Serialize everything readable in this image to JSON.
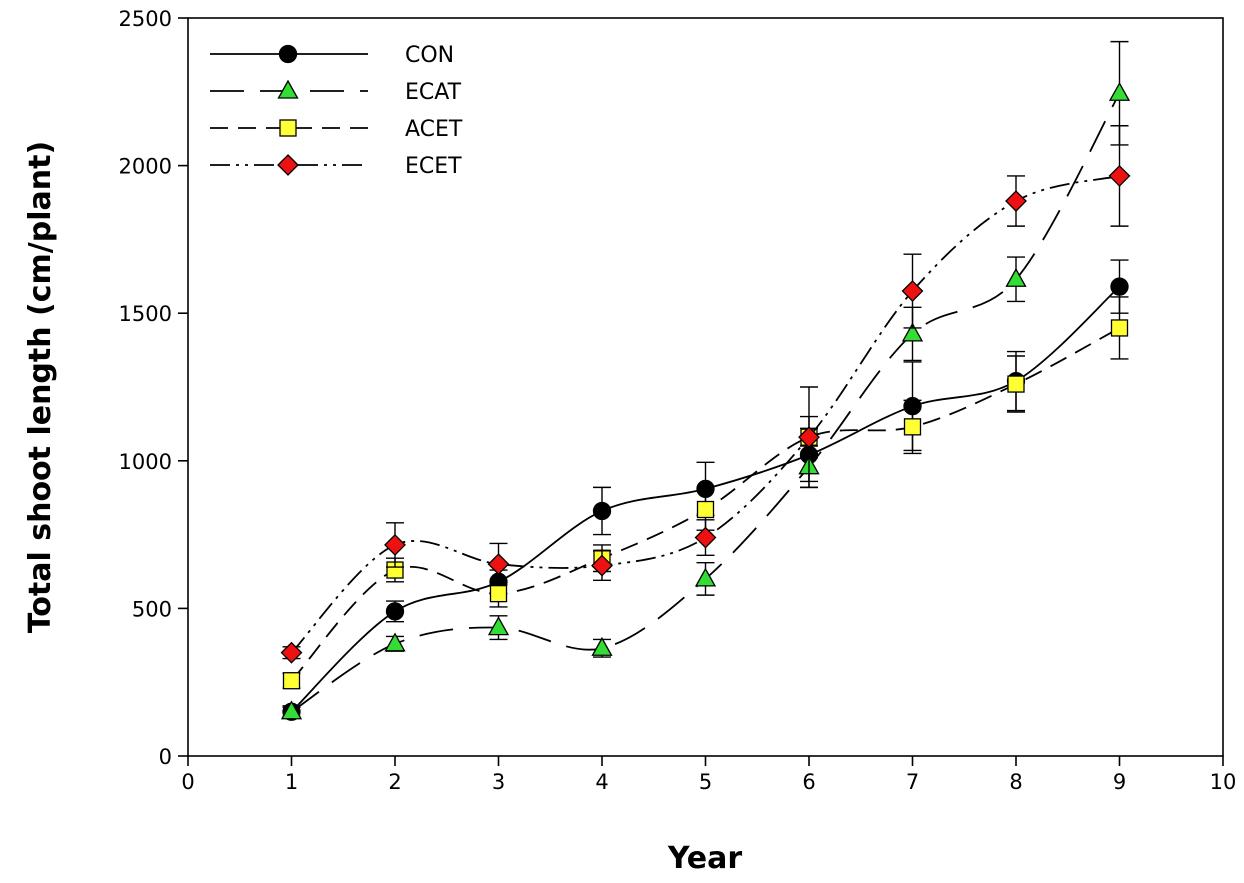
{
  "chart_data": {
    "type": "line",
    "xlabel": "Year",
    "ylabel": "Total shoot length (cm/plant)",
    "xlim": [
      0,
      10
    ],
    "ylim": [
      0,
      2500
    ],
    "xticks": [
      0,
      1,
      2,
      3,
      4,
      5,
      6,
      7,
      8,
      9,
      10
    ],
    "yticks": [
      0,
      500,
      1000,
      1500,
      2000,
      2500
    ],
    "grid": false,
    "legend_position": "top-left",
    "x": [
      1,
      2,
      3,
      4,
      5,
      6,
      7,
      8,
      9
    ],
    "series": [
      {
        "name": "CON",
        "marker": "circle",
        "color": "#000000",
        "dash": "solid",
        "values": [
          150,
          490,
          590,
          830,
          905,
          1020,
          1185,
          1270,
          1590
        ],
        "errors": [
          20,
          35,
          40,
          80,
          90,
          90,
          150,
          100,
          90
        ]
      },
      {
        "name": "ECAT",
        "marker": "triangle",
        "color": "#33dd33",
        "dash": "long-dash",
        "values": [
          150,
          380,
          435,
          365,
          600,
          980,
          1430,
          1615,
          2245
        ],
        "errors": [
          15,
          25,
          40,
          30,
          55,
          70,
          90,
          75,
          175
        ]
      },
      {
        "name": "ACET",
        "marker": "square",
        "color": "#ffff33",
        "dash": "dash",
        "values": [
          255,
          630,
          550,
          670,
          835,
          1080,
          1115,
          1260,
          1450
        ],
        "errors": [
          25,
          40,
          45,
          45,
          70,
          70,
          90,
          95,
          105
        ]
      },
      {
        "name": "ECET",
        "marker": "diamond",
        "color": "#ee1111",
        "dash": "dash-dot-dot",
        "values": [
          350,
          715,
          650,
          645,
          740,
          1080,
          1575,
          1880,
          1965
        ],
        "errors": [
          20,
          75,
          70,
          50,
          60,
          170,
          125,
          85,
          170
        ]
      }
    ]
  }
}
